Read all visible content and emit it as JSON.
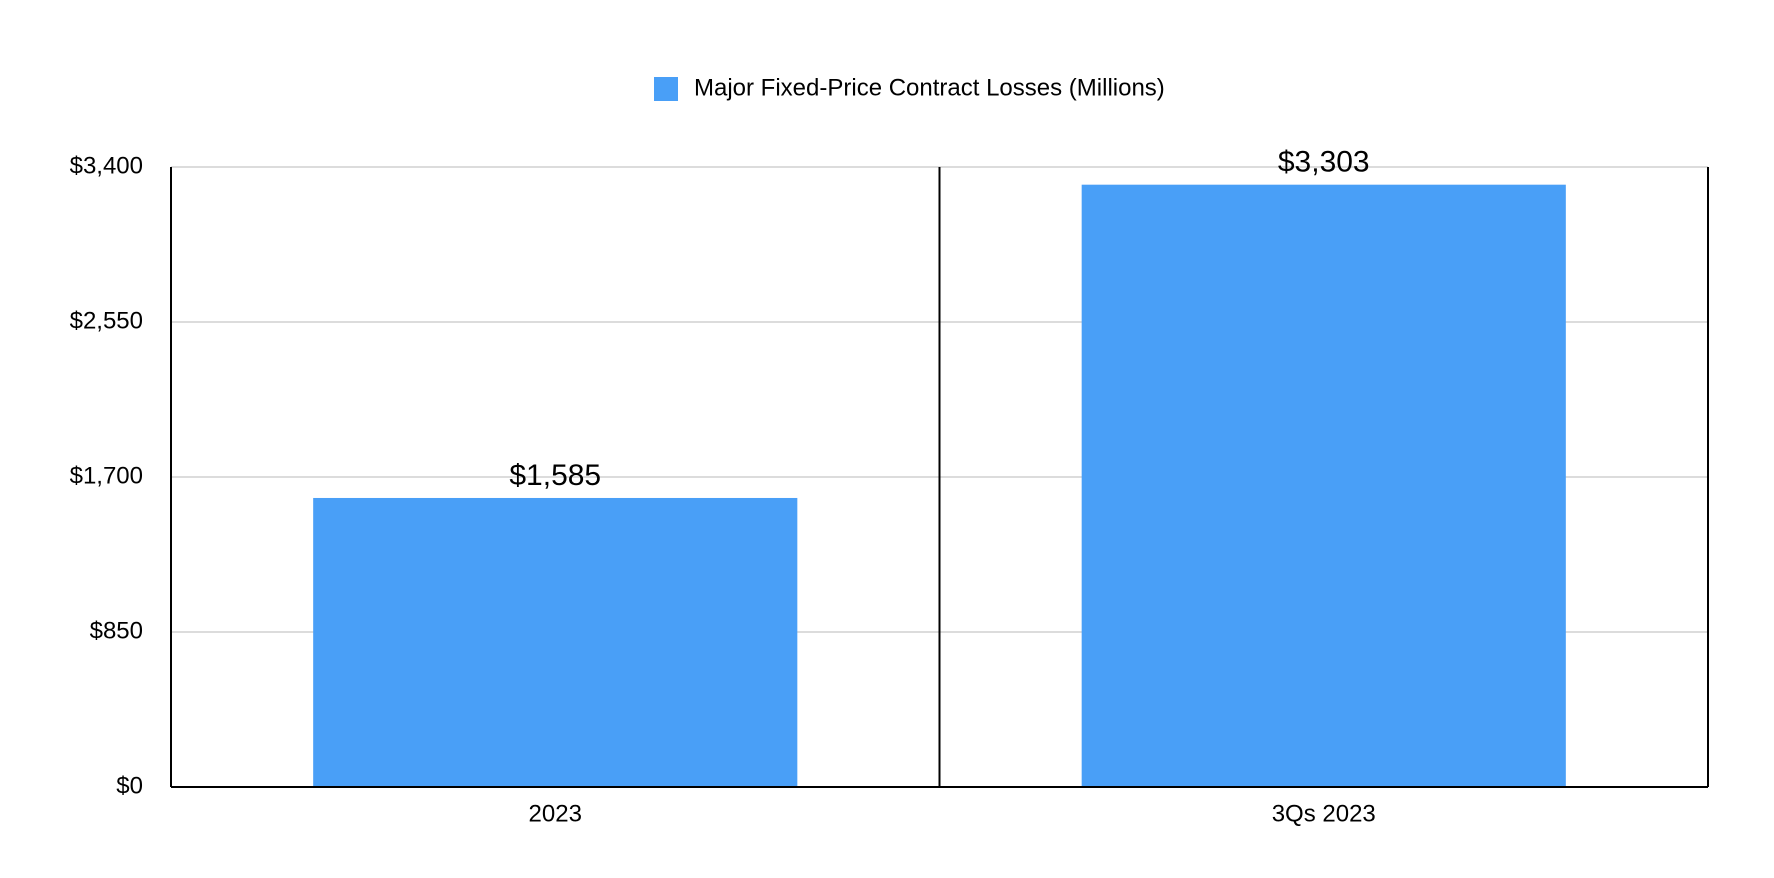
{
  "chart_data": {
    "type": "bar",
    "categories": [
      "2023",
      "3Qs 2023"
    ],
    "series": [
      {
        "name": "Major Fixed-Price Contract Losses (Millions)",
        "color": "#499ff7",
        "values": [
          1585,
          3303
        ],
        "value_labels": [
          "$1,585",
          "$3,303"
        ]
      }
    ],
    "ylim": [
      0,
      3400
    ],
    "yticks": [
      {
        "value": 0,
        "label": "$0"
      },
      {
        "value": 850,
        "label": "$850"
      },
      {
        "value": 1700,
        "label": "$1,700"
      },
      {
        "value": 2550,
        "label": "$2,550"
      },
      {
        "value": 3400,
        "label": "$3,400"
      }
    ],
    "grid": true,
    "legend": "top"
  }
}
